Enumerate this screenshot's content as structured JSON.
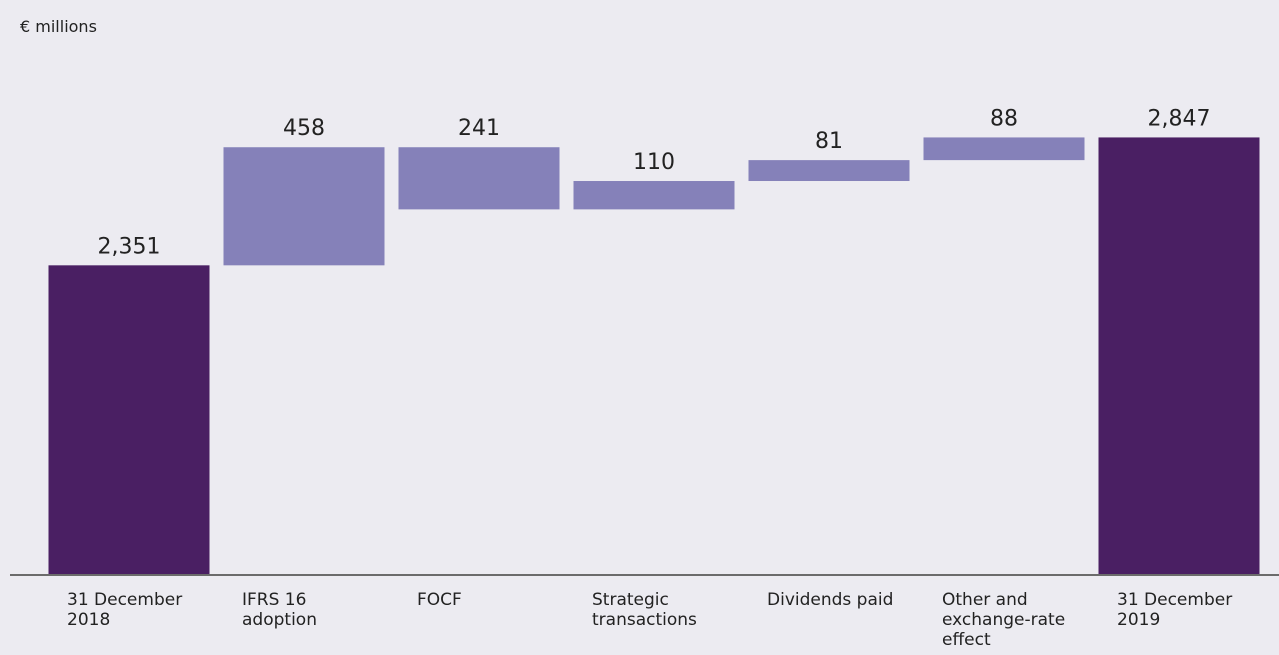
{
  "chart_data": {
    "type": "waterfall",
    "y_label": "€ millions",
    "categories": [
      "31 December 2018",
      "IFRS 16 adoption",
      "FOCF",
      "Strategic transactions",
      "Dividends paid",
      "Other and exchange-rate effect",
      "31 December 2019"
    ],
    "measure": [
      "absolute",
      "relative",
      "relative",
      "relative",
      "relative",
      "relative",
      "total"
    ],
    "values": [
      2351,
      458,
      -241,
      110,
      81,
      88,
      2847
    ],
    "value_labels": [
      "2,351",
      "458",
      "241",
      "110",
      "81",
      "88",
      "2,847"
    ],
    "total_color": "#4a1f63",
    "change_color": "#8581b9",
    "ylim": [
      1150,
      3380
    ]
  }
}
